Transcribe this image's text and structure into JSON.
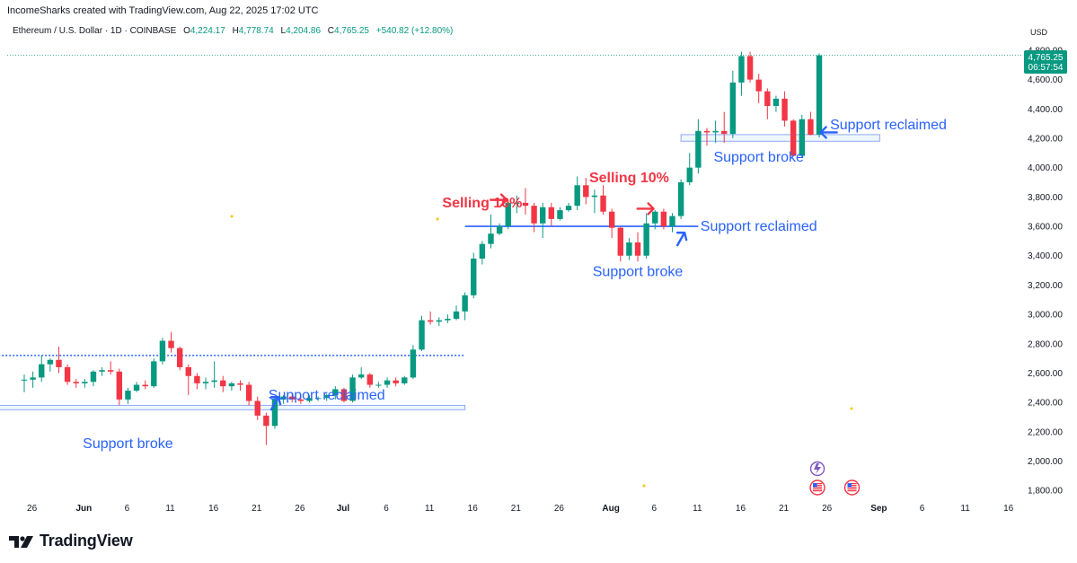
{
  "header": {
    "attribution": "IncomeSharks created with TradingView.com, Aug 22, 2025 17:02 UTC",
    "symbol": "Ethereum / U.S. Dollar · 1D · COINBASE",
    "open_label": "O",
    "open": "4,224.17",
    "high_label": "H",
    "high": "4,778.74",
    "low_label": "L",
    "low": "4,204.86",
    "close_label": "C",
    "close": "4,765.25",
    "change": "+540.82 (+12.80%)",
    "currency": "USD"
  },
  "price_badge": {
    "price": "4,765.25",
    "countdown": "06:57:54"
  },
  "footer": {
    "brand": "TradingView"
  },
  "colors": {
    "up": "#089981",
    "down": "#f23645",
    "annotation_blue": "#2962ff",
    "annotation_red": "#f23645"
  },
  "chart_data": {
    "type": "candlestick",
    "x_axis": {
      "tick_labels": [
        "26",
        "Jun",
        "6",
        "11",
        "16",
        "21",
        "26",
        "Jul",
        "6",
        "11",
        "16",
        "21",
        "26",
        "Aug",
        "6",
        "11",
        "16",
        "21",
        "26",
        "Sep",
        "6",
        "11",
        "16"
      ]
    },
    "y_axis": {
      "ylim": [
        1750,
        4860
      ],
      "tick_labels": [
        "1,800.00",
        "2,000.00",
        "2,200.00",
        "2,400.00",
        "2,600.00",
        "2,800.00",
        "3,000.00",
        "3,200.00",
        "3,400.00",
        "3,600.00",
        "3,800.00",
        "4,000.00",
        "4,200.00",
        "4,400.00",
        "4,600.00",
        "4,800.00"
      ],
      "tick_values": [
        1800,
        2000,
        2200,
        2400,
        2600,
        2800,
        3000,
        3200,
        3400,
        3600,
        3800,
        4000,
        4200,
        4400,
        4600,
        4800
      ]
    },
    "current_price": 4765.25,
    "candles": [
      {
        "date": "2025-05-25",
        "o": 2550,
        "h": 2590,
        "l": 2470,
        "c": 2555
      },
      {
        "date": "2025-05-26",
        "o": 2555,
        "h": 2610,
        "l": 2500,
        "c": 2570
      },
      {
        "date": "2025-05-27",
        "o": 2570,
        "h": 2720,
        "l": 2540,
        "c": 2660
      },
      {
        "date": "2025-05-28",
        "o": 2660,
        "h": 2700,
        "l": 2610,
        "c": 2690
      },
      {
        "date": "2025-05-29",
        "o": 2690,
        "h": 2780,
        "l": 2600,
        "c": 2640
      },
      {
        "date": "2025-05-30",
        "o": 2640,
        "h": 2660,
        "l": 2520,
        "c": 2540
      },
      {
        "date": "2025-05-31",
        "o": 2540,
        "h": 2560,
        "l": 2500,
        "c": 2530
      },
      {
        "date": "2025-06-01",
        "o": 2530,
        "h": 2560,
        "l": 2500,
        "c": 2540
      },
      {
        "date": "2025-06-02",
        "o": 2540,
        "h": 2620,
        "l": 2510,
        "c": 2610
      },
      {
        "date": "2025-06-03",
        "o": 2610,
        "h": 2640,
        "l": 2580,
        "c": 2620
      },
      {
        "date": "2025-06-04",
        "o": 2620,
        "h": 2680,
        "l": 2590,
        "c": 2610
      },
      {
        "date": "2025-06-05",
        "o": 2610,
        "h": 2630,
        "l": 2380,
        "c": 2420
      },
      {
        "date": "2025-06-06",
        "o": 2420,
        "h": 2500,
        "l": 2390,
        "c": 2480
      },
      {
        "date": "2025-06-07",
        "o": 2480,
        "h": 2540,
        "l": 2470,
        "c": 2520
      },
      {
        "date": "2025-06-08",
        "o": 2520,
        "h": 2550,
        "l": 2490,
        "c": 2510
      },
      {
        "date": "2025-06-09",
        "o": 2510,
        "h": 2700,
        "l": 2500,
        "c": 2680
      },
      {
        "date": "2025-06-10",
        "o": 2680,
        "h": 2840,
        "l": 2660,
        "c": 2820
      },
      {
        "date": "2025-06-11",
        "o": 2820,
        "h": 2880,
        "l": 2740,
        "c": 2770
      },
      {
        "date": "2025-06-12",
        "o": 2770,
        "h": 2780,
        "l": 2620,
        "c": 2640
      },
      {
        "date": "2025-06-13",
        "o": 2640,
        "h": 2660,
        "l": 2450,
        "c": 2580
      },
      {
        "date": "2025-06-14",
        "o": 2580,
        "h": 2600,
        "l": 2490,
        "c": 2530
      },
      {
        "date": "2025-06-15",
        "o": 2530,
        "h": 2570,
        "l": 2490,
        "c": 2540
      },
      {
        "date": "2025-06-16",
        "o": 2540,
        "h": 2680,
        "l": 2500,
        "c": 2550
      },
      {
        "date": "2025-06-17",
        "o": 2550,
        "h": 2580,
        "l": 2470,
        "c": 2510
      },
      {
        "date": "2025-06-18",
        "o": 2510,
        "h": 2540,
        "l": 2480,
        "c": 2530
      },
      {
        "date": "2025-06-19",
        "o": 2530,
        "h": 2550,
        "l": 2480,
        "c": 2520
      },
      {
        "date": "2025-06-20",
        "o": 2520,
        "h": 2540,
        "l": 2380,
        "c": 2410
      },
      {
        "date": "2025-06-21",
        "o": 2410,
        "h": 2440,
        "l": 2280,
        "c": 2310
      },
      {
        "date": "2025-06-22",
        "o": 2310,
        "h": 2330,
        "l": 2110,
        "c": 2240
      },
      {
        "date": "2025-06-23",
        "o": 2240,
        "h": 2440,
        "l": 2220,
        "c": 2420
      },
      {
        "date": "2025-06-24",
        "o": 2420,
        "h": 2450,
        "l": 2390,
        "c": 2440
      },
      {
        "date": "2025-06-25",
        "o": 2440,
        "h": 2460,
        "l": 2400,
        "c": 2420
      },
      {
        "date": "2025-06-26",
        "o": 2420,
        "h": 2440,
        "l": 2390,
        "c": 2410
      },
      {
        "date": "2025-06-27",
        "o": 2410,
        "h": 2450,
        "l": 2400,
        "c": 2430
      },
      {
        "date": "2025-06-28",
        "o": 2430,
        "h": 2440,
        "l": 2410,
        "c": 2430
      },
      {
        "date": "2025-06-29",
        "o": 2430,
        "h": 2460,
        "l": 2410,
        "c": 2450
      },
      {
        "date": "2025-06-30",
        "o": 2450,
        "h": 2510,
        "l": 2420,
        "c": 2490
      },
      {
        "date": "2025-07-01",
        "o": 2490,
        "h": 2500,
        "l": 2400,
        "c": 2410
      },
      {
        "date": "2025-07-02",
        "o": 2410,
        "h": 2590,
        "l": 2400,
        "c": 2570
      },
      {
        "date": "2025-07-03",
        "o": 2570,
        "h": 2640,
        "l": 2560,
        "c": 2590
      },
      {
        "date": "2025-07-04",
        "o": 2590,
        "h": 2600,
        "l": 2500,
        "c": 2520
      },
      {
        "date": "2025-07-05",
        "o": 2520,
        "h": 2540,
        "l": 2500,
        "c": 2520
      },
      {
        "date": "2025-07-06",
        "o": 2520,
        "h": 2570,
        "l": 2500,
        "c": 2550
      },
      {
        "date": "2025-07-07",
        "o": 2550,
        "h": 2570,
        "l": 2510,
        "c": 2530
      },
      {
        "date": "2025-07-08",
        "o": 2530,
        "h": 2580,
        "l": 2520,
        "c": 2570
      },
      {
        "date": "2025-07-09",
        "o": 2570,
        "h": 2790,
        "l": 2560,
        "c": 2760
      },
      {
        "date": "2025-07-10",
        "o": 2760,
        "h": 2990,
        "l": 2750,
        "c": 2960
      },
      {
        "date": "2025-07-11",
        "o": 2960,
        "h": 3020,
        "l": 2930,
        "c": 2950
      },
      {
        "date": "2025-07-12",
        "o": 2950,
        "h": 2980,
        "l": 2920,
        "c": 2960
      },
      {
        "date": "2025-07-13",
        "o": 2960,
        "h": 3000,
        "l": 2940,
        "c": 2970
      },
      {
        "date": "2025-07-14",
        "o": 2970,
        "h": 3060,
        "l": 2960,
        "c": 3020
      },
      {
        "date": "2025-07-15",
        "o": 3020,
        "h": 3150,
        "l": 2960,
        "c": 3130
      },
      {
        "date": "2025-07-16",
        "o": 3130,
        "h": 3420,
        "l": 3110,
        "c": 3380
      },
      {
        "date": "2025-07-17",
        "o": 3380,
        "h": 3500,
        "l": 3340,
        "c": 3480
      },
      {
        "date": "2025-07-18",
        "o": 3480,
        "h": 3680,
        "l": 3450,
        "c": 3550
      },
      {
        "date": "2025-07-19",
        "o": 3550,
        "h": 3620,
        "l": 3540,
        "c": 3600
      },
      {
        "date": "2025-07-20",
        "o": 3600,
        "h": 3780,
        "l": 3580,
        "c": 3760
      },
      {
        "date": "2025-07-21",
        "o": 3760,
        "h": 3810,
        "l": 3690,
        "c": 3760
      },
      {
        "date": "2025-07-22",
        "o": 3760,
        "h": 3860,
        "l": 3680,
        "c": 3740
      },
      {
        "date": "2025-07-23",
        "o": 3740,
        "h": 3760,
        "l": 3560,
        "c": 3620
      },
      {
        "date": "2025-07-24",
        "o": 3620,
        "h": 3760,
        "l": 3520,
        "c": 3730
      },
      {
        "date": "2025-07-25",
        "o": 3730,
        "h": 3760,
        "l": 3600,
        "c": 3650
      },
      {
        "date": "2025-07-26",
        "o": 3650,
        "h": 3730,
        "l": 3640,
        "c": 3710
      },
      {
        "date": "2025-07-27",
        "o": 3710,
        "h": 3760,
        "l": 3700,
        "c": 3740
      },
      {
        "date": "2025-07-28",
        "o": 3740,
        "h": 3940,
        "l": 3710,
        "c": 3880
      },
      {
        "date": "2025-07-29",
        "o": 3880,
        "h": 3930,
        "l": 3750,
        "c": 3800
      },
      {
        "date": "2025-07-30",
        "o": 3800,
        "h": 3850,
        "l": 3690,
        "c": 3810
      },
      {
        "date": "2025-07-31",
        "o": 3810,
        "h": 3880,
        "l": 3680,
        "c": 3700
      },
      {
        "date": "2025-08-01",
        "o": 3700,
        "h": 3720,
        "l": 3520,
        "c": 3590
      },
      {
        "date": "2025-08-02",
        "o": 3590,
        "h": 3600,
        "l": 3360,
        "c": 3400
      },
      {
        "date": "2025-08-03",
        "o": 3400,
        "h": 3520,
        "l": 3370,
        "c": 3490
      },
      {
        "date": "2025-08-04",
        "o": 3490,
        "h": 3560,
        "l": 3360,
        "c": 3400
      },
      {
        "date": "2025-08-05",
        "o": 3400,
        "h": 3690,
        "l": 3380,
        "c": 3620
      },
      {
        "date": "2025-08-06",
        "o": 3620,
        "h": 3710,
        "l": 3580,
        "c": 3700
      },
      {
        "date": "2025-08-07",
        "o": 3700,
        "h": 3720,
        "l": 3580,
        "c": 3600
      },
      {
        "date": "2025-08-08",
        "o": 3600,
        "h": 3690,
        "l": 3560,
        "c": 3670
      },
      {
        "date": "2025-08-09",
        "o": 3670,
        "h": 3920,
        "l": 3650,
        "c": 3900
      },
      {
        "date": "2025-08-10",
        "o": 3900,
        "h": 4100,
        "l": 3880,
        "c": 4000
      },
      {
        "date": "2025-08-11",
        "o": 4000,
        "h": 4330,
        "l": 3960,
        "c": 4250
      },
      {
        "date": "2025-08-12",
        "o": 4250,
        "h": 4270,
        "l": 4150,
        "c": 4240
      },
      {
        "date": "2025-08-13",
        "o": 4240,
        "h": 4320,
        "l": 4170,
        "c": 4250
      },
      {
        "date": "2025-08-14",
        "o": 4250,
        "h": 4380,
        "l": 4170,
        "c": 4230
      },
      {
        "date": "2025-08-15",
        "o": 4230,
        "h": 4660,
        "l": 4200,
        "c": 4580
      },
      {
        "date": "2025-08-16",
        "o": 4580,
        "h": 4790,
        "l": 4490,
        "c": 4760
      },
      {
        "date": "2025-08-17",
        "o": 4760,
        "h": 4790,
        "l": 4580,
        "c": 4600
      },
      {
        "date": "2025-08-18",
        "o": 4600,
        "h": 4640,
        "l": 4440,
        "c": 4520
      },
      {
        "date": "2025-08-19",
        "o": 4520,
        "h": 4540,
        "l": 4330,
        "c": 4420
      },
      {
        "date": "2025-08-20",
        "o": 4420,
        "h": 4490,
        "l": 4380,
        "c": 4470
      },
      {
        "date": "2025-08-21",
        "o": 4470,
        "h": 4520,
        "l": 4280,
        "c": 4320
      },
      {
        "date": "2025-08-22",
        "o": 4320,
        "h": 4330,
        "l": 4080,
        "c": 4080
      },
      {
        "date": "2025-08-23",
        "o": 4080,
        "h": 4360,
        "l": 4070,
        "c": 4330
      },
      {
        "date": "2025-08-24",
        "o": 4330,
        "h": 4380,
        "l": 4220,
        "c": 4224.17
      },
      {
        "date": "2025-08-25",
        "o": 4224.17,
        "h": 4778.74,
        "l": 4204.86,
        "c": 4765.25
      }
    ],
    "levels": [
      {
        "price": 2720,
        "style": "dotted",
        "from": "2025-05-22",
        "to": "2025-07-15"
      },
      {
        "price": 3600,
        "style": "solid",
        "from": "2025-07-15",
        "to": "2025-08-11"
      }
    ],
    "zones": [
      {
        "bottom": 2350,
        "top": 2380,
        "from": "2025-05-22",
        "to": "2025-07-15"
      },
      {
        "bottom": 4180,
        "top": 4225,
        "from": "2025-08-09",
        "to": "2025-09-01"
      }
    ],
    "annotations": [
      {
        "text": "Support broke",
        "color": "blue",
        "date": "2025-06-06",
        "price": 2090
      },
      {
        "text": "Support reclaimed",
        "color": "blue",
        "date": "2025-06-29",
        "price": 2420
      },
      {
        "text": "Selling 10%",
        "color": "red",
        "date": "2025-07-17",
        "price": 3730
      },
      {
        "text": "Support broke",
        "color": "blue",
        "date": "2025-08-04",
        "price": 3260
      },
      {
        "text": "Selling 10%",
        "color": "red",
        "date": "2025-08-03",
        "price": 3900
      },
      {
        "text": "Support reclaimed",
        "color": "blue",
        "date": "2025-08-18",
        "price": 3570
      },
      {
        "text": "Support broke",
        "color": "blue",
        "date": "2025-08-18",
        "price": 4040
      },
      {
        "text": "Support reclaimed",
        "color": "blue",
        "date": "2025-09-02",
        "price": 4260
      }
    ],
    "arrows": [
      {
        "color": "blue",
        "date": "2025-06-23",
        "price": 2400,
        "direction": "up-right"
      },
      {
        "color": "red",
        "date": "2025-07-19",
        "price": 3780,
        "direction": "right"
      },
      {
        "color": "red",
        "date": "2025-08-05",
        "price": 3720,
        "direction": "right"
      },
      {
        "color": "blue",
        "date": "2025-08-09",
        "price": 3520,
        "direction": "up-right"
      },
      {
        "color": "blue",
        "date": "2025-08-26",
        "price": 4240,
        "direction": "left"
      }
    ],
    "event_markers": [
      {
        "date": "2025-08-25",
        "kind": "ai-icon"
      },
      {
        "date": "2025-08-25",
        "kind": "us-flag"
      },
      {
        "date": "2025-08-29",
        "kind": "us-flag"
      }
    ]
  }
}
